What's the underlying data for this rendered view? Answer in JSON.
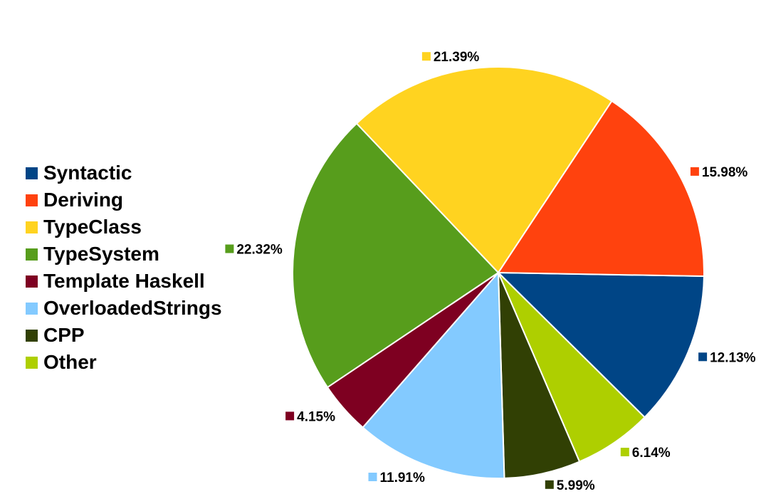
{
  "chart_data": {
    "type": "pie",
    "slices": [
      {
        "name": "Syntactic",
        "value": 12.13,
        "label": "12.13%",
        "color": "#004586"
      },
      {
        "name": "Other",
        "value": 6.14,
        "label": "6.14%",
        "color": "#aecf00"
      },
      {
        "name": "CPP",
        "value": 5.99,
        "label": "5.99%",
        "color": "#314004"
      },
      {
        "name": "OverloadedStrings",
        "value": 11.91,
        "label": "11.91%",
        "color": "#83caff"
      },
      {
        "name": "Template Haskell",
        "value": 4.15,
        "label": "4.15%",
        "color": "#7e0021"
      },
      {
        "name": "TypeSystem",
        "value": 22.32,
        "label": "22.32%",
        "color": "#579d1c"
      },
      {
        "name": "TypeClass",
        "value": 21.39,
        "label": "21.39%",
        "color": "#ffd320"
      },
      {
        "name": "Deriving",
        "value": 15.98,
        "label": "15.98%",
        "color": "#ff420e"
      }
    ],
    "legend": {
      "placement": "left",
      "items": [
        {
          "label": "Syntactic",
          "color": "#004586"
        },
        {
          "label": "Deriving",
          "color": "#ff420e"
        },
        {
          "label": "TypeClass",
          "color": "#ffd320"
        },
        {
          "label": "TypeSystem",
          "color": "#579d1c"
        },
        {
          "label": "Template Haskell",
          "color": "#7e0021"
        },
        {
          "label": "OverloadedStrings",
          "color": "#83caff"
        },
        {
          "label": "CPP",
          "color": "#314004"
        },
        {
          "label": "Other",
          "color": "#aecf00"
        }
      ]
    }
  }
}
